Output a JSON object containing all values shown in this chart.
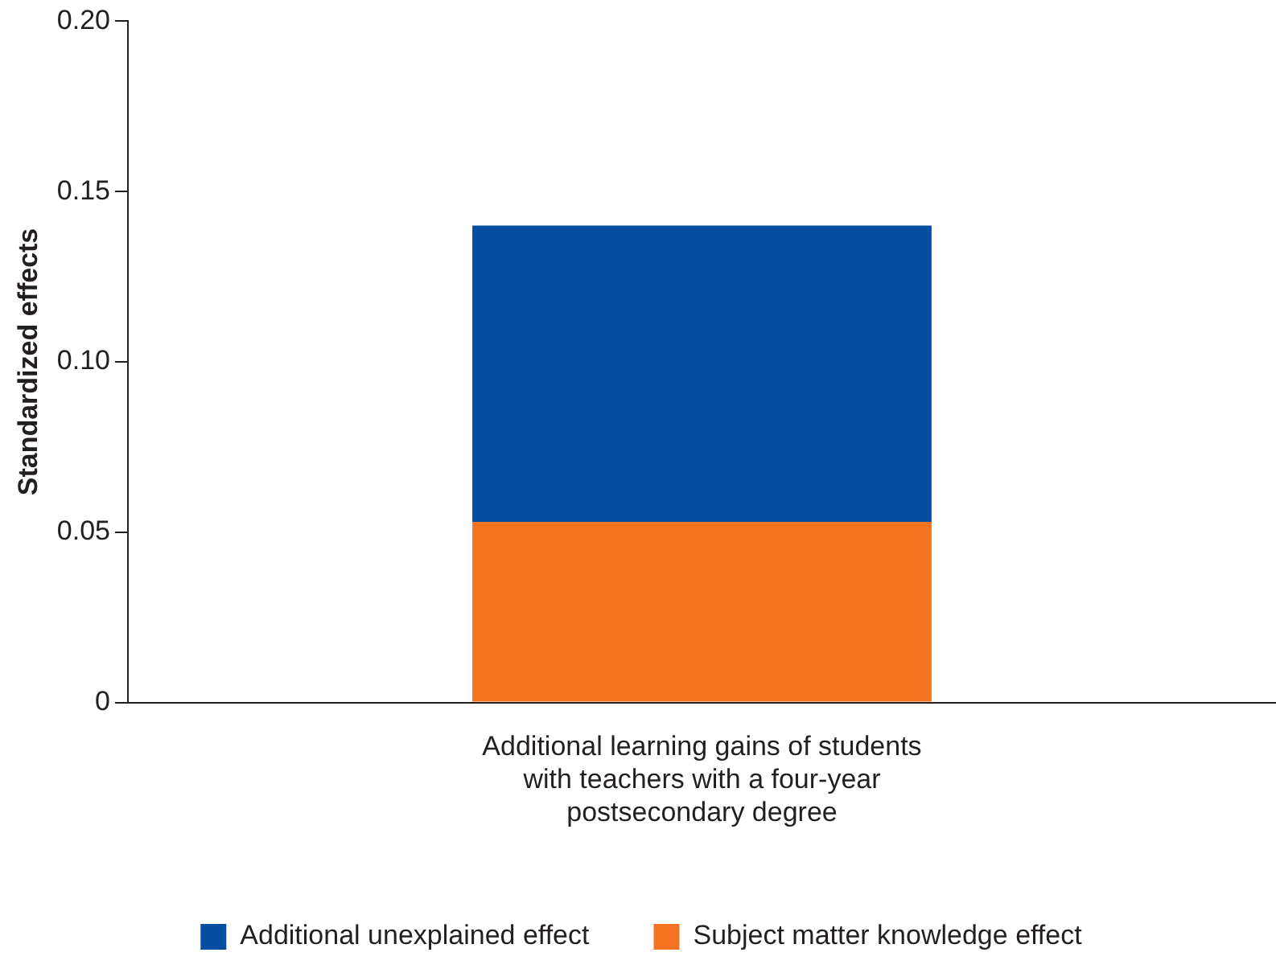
{
  "chart_data": {
    "type": "bar",
    "stacked": true,
    "ylabel": "Standardized effects",
    "categories": [
      "Additional learning gains of students with teachers with a four-year postsecondary degree"
    ],
    "series": [
      {
        "name": "Subject matter knowledge effect",
        "color": "#f37321",
        "values": [
          0.053
        ]
      },
      {
        "name": "Additional unexplained effect",
        "color": "#034ea2",
        "values": [
          0.087
        ]
      }
    ],
    "ylim": [
      0,
      0.2
    ],
    "yticks": [
      0,
      {
        "value": 0.05,
        "label": "0.05"
      },
      {
        "value": 0.1,
        "label": "0.10"
      },
      {
        "value": 0.15,
        "label": "0.15"
      },
      {
        "value": 0.2,
        "label": "0.20"
      }
    ],
    "grid": false,
    "legend": "bottom"
  }
}
